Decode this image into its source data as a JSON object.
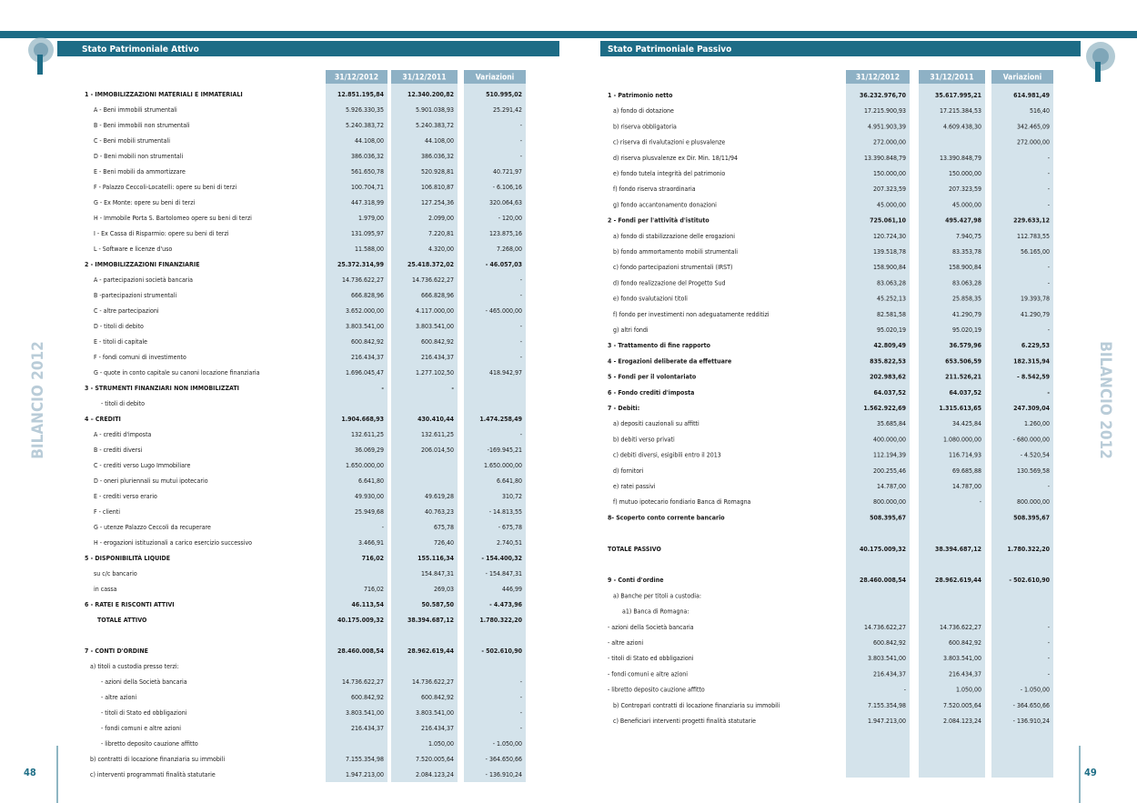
{
  "left": {
    "title": "Stato Patrimoniale Attivo",
    "side": "BILANCIO 2012",
    "page": "48",
    "headers": [
      "31/12/2012",
      "31/12/2011",
      "Variazioni"
    ],
    "rows": [
      [
        "1 - IMMOBILIZZAZIONI MATERIALI E IMMATERIALI",
        "12.851.195,84",
        "12.340.200,82",
        "510.995,02"
      ],
      [
        "A - Beni immobili strumentali",
        "5.926.330,35",
        "5.901.038,93",
        "25.291,42"
      ],
      [
        "B - Beni immobili non strumentali",
        "5.240.383,72",
        "5.240.383,72",
        "-"
      ],
      [
        "C - Beni mobili strumentali",
        "44.108,00",
        "44.108,00",
        "-"
      ],
      [
        "D - Beni mobili non strumentali",
        "386.036,32",
        "386.036,32",
        "-"
      ],
      [
        "E - Beni mobili da ammortizzare",
        "561.650,78",
        "520.928,81",
        "40.721,97"
      ],
      [
        "F - Palazzo Ceccoli-Locatelli: opere su beni di terzi",
        "100.704,71",
        "106.810,87",
        "- 6.106,16"
      ],
      [
        "G - Ex Monte: opere su beni di terzi",
        "447.318,99",
        "127.254,36",
        "320.064,63"
      ],
      [
        "H - Immobile Porta S. Bartolomeo  opere su beni di terzi",
        "1.979,00",
        "2.099,00",
        "- 120,00"
      ],
      [
        "I - Ex Cassa di Risparmio: opere su beni di terzi",
        "131.095,97",
        "7.220,81",
        "123.875,16"
      ],
      [
        "L - Software e licenze d'uso",
        "11.588,00",
        "4.320,00",
        "7.268,00"
      ],
      [
        "2 - IMMOBILIZZAZIONI FINANZIARIE",
        "25.372.314,99",
        "25.418.372,02",
        "- 46.057,03"
      ],
      [
        "A - partecipazioni società bancaria",
        "14.736.622,27",
        "14.736.622,27",
        "-"
      ],
      [
        "B -partecipazioni strumentali",
        "666.828,96",
        "666.828,96",
        "-"
      ],
      [
        "C - altre partecipazioni",
        "3.652.000,00",
        "4.117.000,00",
        "- 465.000,00"
      ],
      [
        "D - titoli di debito",
        "3.803.541,00",
        "3.803.541,00",
        "-"
      ],
      [
        "E - titoli di capitale",
        "600.842,92",
        "600.842,92",
        "-"
      ],
      [
        "F - fondi comuni di investimento",
        "216.434,37",
        "216.434,37",
        "-"
      ],
      [
        "G - quote in conto capitale su canoni locazione finanziaria",
        "1.696.045,47",
        "1.277.102,50",
        "418.942,97"
      ],
      [
        "3 - STRUMENTI FINANZIARI NON IMMOBILIZZATI",
        "-",
        "-",
        null
      ],
      [
        "- titoli di debito",
        null,
        null,
        null
      ],
      [
        "4 – CREDITI",
        "1.904.668,93",
        "430.410,44",
        "1.474.258,49"
      ],
      [
        "A - crediti d'imposta",
        "132.611,25",
        "132.611,25",
        "-"
      ],
      [
        "B - crediti diversi",
        "36.069,29",
        "206.014,50",
        "-169.945,21"
      ],
      [
        "C - crediti verso Lugo Immobiliare",
        "1.650.000,00",
        null,
        "1.650.000,00"
      ],
      [
        "D - oneri pluriennali su mutui ipotecario",
        "6.641,80",
        null,
        "6.641,80"
      ],
      [
        "E - crediti verso erario",
        "49.930,00",
        "49.619,28",
        "310,72"
      ],
      [
        "F - clienti",
        "25.949,68",
        "40.763,23",
        "- 14.813,55"
      ],
      [
        "G - utenze Palazzo Ceccoli da recuperare",
        "-",
        "675,78",
        "- 675,78"
      ],
      [
        "H - erogazioni istituzionali a carico esercizio successivo",
        "3.466,91",
        "726,40",
        "2.740,51"
      ],
      [
        "5 - DISPONIBILITÀ LIQUIDE",
        "716,02",
        "155.116,34",
        "- 154.400,32"
      ],
      [
        "su c/c bancario",
        null,
        "154.847,31",
        "- 154.847,31"
      ],
      [
        "in cassa",
        "716,02",
        "269,03",
        "446,99"
      ],
      [
        "6 - RATEI E RISCONTI ATTIVI",
        "46.113,54",
        "50.587,50",
        "- 4.473,96"
      ],
      [
        "TOTALE ATTIVO",
        "40.175.009,32",
        "38.394.687,12",
        "1.780.322,20"
      ],
      [
        "7 - CONTI D'ORDINE",
        "28.460.008,54",
        "28.962.619,44",
        "- 502.610,90"
      ],
      [
        "a) titoli a custodia presso terzi:",
        null,
        null,
        null
      ],
      [
        "- azioni della Società bancaria",
        "14.736.622,27",
        "14.736.622,27",
        "-"
      ],
      [
        "- altre azioni",
        "600.842,92",
        "600.842,92",
        "-"
      ],
      [
        "- titoli di Stato ed obbligazioni",
        "3.803.541,00",
        "3.803.541,00",
        "-"
      ],
      [
        "- fondi comuni e altre azioni",
        "216.434,37",
        "216.434,37",
        "-"
      ],
      [
        "- libretto deposito cauzione affitto",
        null,
        "1.050,00",
        "- 1.050,00"
      ],
      [
        "b) contratti di locazione finanziaria su immobili",
        "7.155.354,98",
        "7.520.005,64",
        "- 364.650,66"
      ],
      [
        "c) interventi programmati finalità statutarie",
        "1.947.213,00",
        "2.084.123,24",
        "- 136.910,24"
      ]
    ]
  },
  "right": {
    "title": "Stato Patrimoniale  Passivo",
    "side": "BILANCIO 2012",
    "page": "49",
    "headers": [
      "31/12/2012",
      "31/12/2011",
      "Variazioni"
    ],
    "rows": [
      [
        "1 - Patrimonio netto",
        "36.232.976,70",
        "35.617.995,21",
        "614.981,49"
      ],
      [
        "a) fondo di dotazione",
        "17.215.900,93",
        "17.215.384,53",
        "516,40"
      ],
      [
        "b) riserva obbligatoria",
        "4.951.903,39",
        "4.609.438,30",
        "342.465,09"
      ],
      [
        "c) riserva di rivalutazioni e plusvalenze",
        "272.000,00",
        null,
        "272.000,00"
      ],
      [
        "d) riserva plusvalenze ex Dir. Min. 18/11/94",
        "13.390.848,79",
        "13.390.848,79",
        "-"
      ],
      [
        "e) fondo tutela integrità del patrimonio",
        "150.000,00",
        "150.000,00",
        "-"
      ],
      [
        "f) fondo riserva straordinaria",
        "207.323,59",
        "207.323,59",
        "-"
      ],
      [
        "g) fondo accantonamento donazioni",
        "45.000,00",
        "45.000,00",
        "-"
      ],
      [
        "2 - Fondi per l'attività d'istituto",
        "725.061,10",
        "495.427,98",
        "229.633,12"
      ],
      [
        "a) fondo di stabilizzazione delle erogazioni",
        "120.724,30",
        "7.940,75",
        "112.783,55"
      ],
      [
        "b) fondo ammortamento mobili strumentali",
        "139.518,78",
        "83.353,78",
        "56.165,00"
      ],
      [
        "c) fondo partecipazioni strumentali (IRST)",
        "158.900,84",
        "158.900,84",
        "-"
      ],
      [
        "d) fondo realizzazione del Progetto Sud",
        "83.063,28",
        "83.063,28",
        "-"
      ],
      [
        "e) fondo svalutazioni titoli",
        "45.252,13",
        "25.858,35",
        "19.393,78"
      ],
      [
        "f) fondo per investimenti non adeguatamente redditizi",
        "82.581,58",
        "41.290,79",
        "41.290,79"
      ],
      [
        "g) altri fondi",
        "95.020,19",
        "95.020,19",
        "-"
      ],
      [
        "3 - Trattamento di fine rapporto",
        "42.809,49",
        "36.579,96",
        "6.229,53"
      ],
      [
        "4 - Erogazioni deliberate da effettuare",
        "835.822,53",
        "653.506,59",
        "182.315,94"
      ],
      [
        "5 - Fondi per il volontariato",
        "202.983,62",
        "211.526,21",
        "- 8.542,59"
      ],
      [
        "6 - Fondo crediti d'imposta",
        "64.037,52",
        "64.037,52",
        "-"
      ],
      [
        "7 - Debiti:",
        "1.562.922,69",
        "1.315.613,65",
        "247.309,04"
      ],
      [
        "a) depositi cauzionali su affitti",
        "35.685,84",
        "34.425,84",
        "1.260,00"
      ],
      [
        "b) debiti verso privati",
        "400.000,00",
        "1.080.000,00",
        "- 680.000,00"
      ],
      [
        "c) debiti diversi, esigibili entro il 2013",
        "112.194,39",
        "116.714,93",
        "- 4.520,54"
      ],
      [
        "d) fornitori",
        "200.255,46",
        "69.685,88",
        "130.569,58"
      ],
      [
        "e) ratei passivi",
        "14.787,00",
        "14.787,00",
        "-"
      ],
      [
        "f) mutuo ipotecario fondiario Banca di Romagna",
        "800.000,00",
        "-",
        "800.000,00"
      ],
      [
        "8- Scoperto conto corrente bancario",
        "508.395,67",
        null,
        "508.395,67"
      ],
      [
        "TOTALE PASSIVO",
        "40.175.009,32",
        "38.394.687,12",
        "1.780.322,20"
      ],
      [
        "9 - Conti d'ordine",
        "28.460.008,54",
        "28.962.619,44",
        "- 502.610,90"
      ],
      [
        "a) Banche per titoli a custodia:",
        null,
        null,
        null
      ],
      [
        "a1) Banca di Romagna:",
        null,
        null,
        null
      ],
      [
        "- azioni della Società bancaria",
        "14.736.622,27",
        "14.736.622,27",
        "-"
      ],
      [
        "- altre azioni",
        "600.842,92",
        "600.842,92",
        "-"
      ],
      [
        "- titoli di Stato ed obbligazioni",
        "3.803.541,00",
        "3.803.541,00",
        "-"
      ],
      [
        "- fondi comuni e altre azioni",
        "216.434,37",
        "216.434,37",
        "-"
      ],
      [
        "- libretto deposito cauzione affitto",
        "-",
        "1.050,00",
        "- 1.050,00"
      ],
      [
        "b) Contropari contratti di locazione finanziaria su immobili",
        "7.155.354,98",
        "7.520.005,64",
        "- 364.650,66"
      ],
      [
        "c) Beneficiari interventi progetti finalità statutarie",
        "1.947.213,00",
        "2.084.123,24",
        "- 136.910,24"
      ]
    ]
  }
}
